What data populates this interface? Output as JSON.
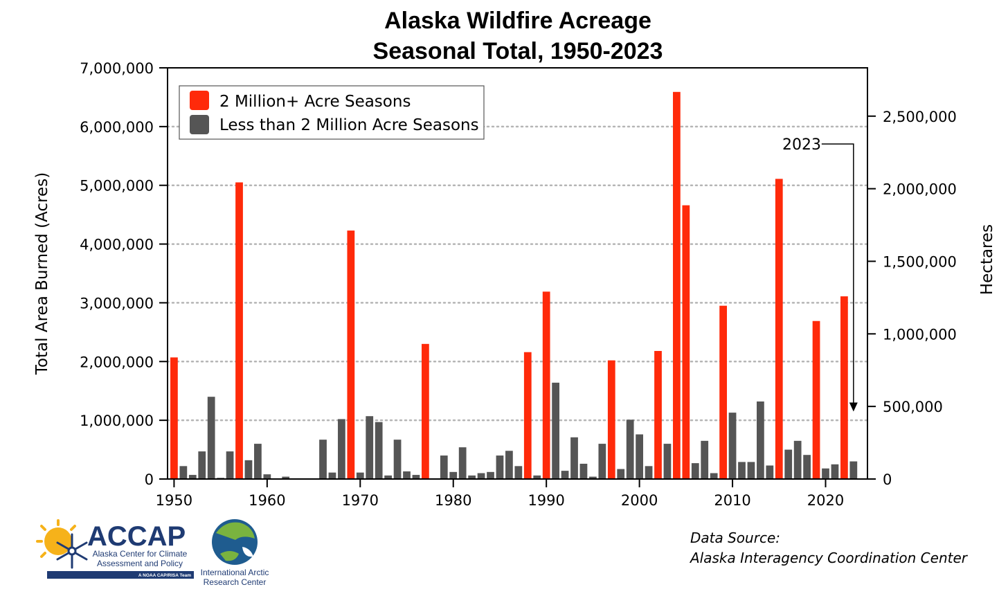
{
  "chart_data": {
    "type": "bar",
    "title": [
      "Alaska Wildfire Acreage",
      "Seasonal Total, 1950-2023"
    ],
    "ylabel": "Total Area Burned (Acres)",
    "y2label": "Hectares",
    "ylim": [
      0,
      7000000
    ],
    "y2lim": [
      0,
      2832800
    ],
    "yticks": [
      "0",
      "1,000,000",
      "2,000,000",
      "3,000,000",
      "4,000,000",
      "5,000,000",
      "6,000,000",
      "7,000,000"
    ],
    "y2ticks": [
      "0",
      "500,000",
      "1,000,000",
      "1,500,000",
      "2,000,000",
      "2,500,000"
    ],
    "xticks": [
      "1950",
      "1960",
      "1970",
      "1980",
      "1990",
      "2000",
      "2010",
      "2020"
    ],
    "xlim": [
      1949.3,
      2024.5
    ],
    "grid": "horizontal dotted",
    "legend_position": "top-left",
    "threshold": 2000000,
    "colors": {
      "high": "#ff2a0a",
      "low": "#555555"
    },
    "legend": [
      {
        "label": "2 Million+ Acre Seasons",
        "color": "#ff2a0a"
      },
      {
        "label": "Less than 2 Million Acre Seasons",
        "color": "#555555"
      }
    ],
    "annotation": {
      "label": "2023",
      "year": 2023
    },
    "x": [
      1950,
      1951,
      1952,
      1953,
      1954,
      1955,
      1956,
      1957,
      1958,
      1959,
      1960,
      1961,
      1962,
      1963,
      1964,
      1965,
      1966,
      1967,
      1968,
      1969,
      1970,
      1971,
      1972,
      1973,
      1974,
      1975,
      1976,
      1977,
      1978,
      1979,
      1980,
      1981,
      1982,
      1983,
      1984,
      1985,
      1986,
      1987,
      1988,
      1989,
      1990,
      1991,
      1992,
      1993,
      1994,
      1995,
      1996,
      1997,
      1998,
      1999,
      2000,
      2001,
      2002,
      2003,
      2004,
      2005,
      2006,
      2007,
      2008,
      2009,
      2010,
      2011,
      2012,
      2013,
      2014,
      2015,
      2016,
      2017,
      2018,
      2019,
      2020,
      2021,
      2022,
      2023
    ],
    "values": [
      2070000,
      220000,
      70000,
      470000,
      1400000,
      20000,
      470000,
      5050000,
      320000,
      600000,
      80000,
      5000,
      40000,
      10000,
      5000,
      0,
      670000,
      110000,
      1020000,
      4230000,
      110000,
      1070000,
      970000,
      60000,
      670000,
      130000,
      70000,
      2300000,
      5000,
      400000,
      120000,
      540000,
      60000,
      100000,
      120000,
      400000,
      480000,
      220000,
      2160000,
      60000,
      3190000,
      1640000,
      140000,
      710000,
      260000,
      40000,
      600000,
      2020000,
      170000,
      1010000,
      760000,
      220000,
      2180000,
      600000,
      6590000,
      4660000,
      270000,
      650000,
      100000,
      2950000,
      1130000,
      290000,
      290000,
      1320000,
      230000,
      5110000,
      500000,
      650000,
      410000,
      2690000,
      180000,
      250000,
      3110000,
      300000
    ]
  },
  "source": {
    "line1": "Data Source:",
    "line2": "Alaska Interagency Coordination Center"
  },
  "logos": {
    "accap": {
      "name": "ACCAP",
      "line1": "Alaska Center for Climate",
      "line2": "Assessment and Policy",
      "tagline": "A NOAA CAP/RISA Team"
    },
    "iarc": {
      "line1": "International Arctic",
      "line2": "Research Center"
    }
  }
}
